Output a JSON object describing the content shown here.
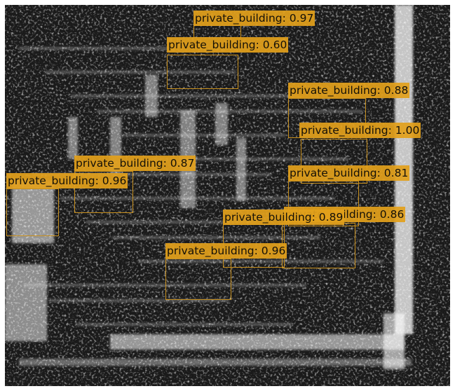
{
  "image": {
    "description_icon": "sar-satellite-image",
    "colors": {
      "box": "#c8901e",
      "label_bg": "#e2a01c",
      "label_text": "#141008"
    }
  },
  "detections": [
    {
      "class": "private_building",
      "score": "0.97"
    },
    {
      "class": "private_building",
      "score": "0.60"
    },
    {
      "class": "private_building",
      "score": "0.88"
    },
    {
      "class": "private_building",
      "score": "1.00"
    },
    {
      "class": "private_building",
      "score": "0.87"
    },
    {
      "class": "private_building",
      "score": "0.96"
    },
    {
      "class": "private_building",
      "score": "0.81"
    },
    {
      "class": "private_building",
      "score": "0.86"
    },
    {
      "class": "private_building",
      "score": "0.89"
    },
    {
      "class": "private_building",
      "score": "0.96"
    }
  ]
}
